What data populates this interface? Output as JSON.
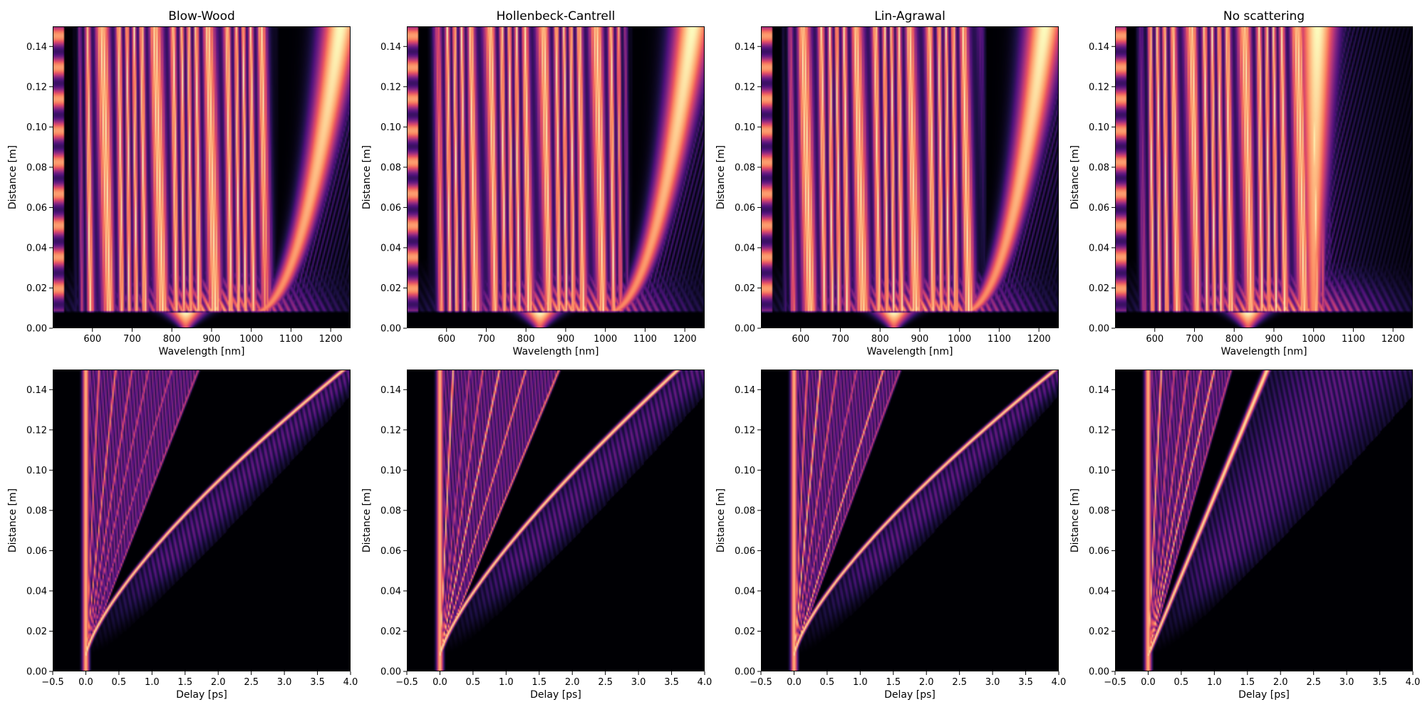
{
  "chart_data": [
    {
      "type": "heatmap",
      "title": "Blow-Wood",
      "xlabel": "Wavelength [nm]",
      "ylabel": "Distance [m]",
      "xlim": [
        500,
        1250
      ],
      "ylim": [
        0,
        0.15
      ],
      "xticks": [
        "600",
        "700",
        "800",
        "900",
        "1000",
        "1100",
        "1200"
      ],
      "yticks": [
        "0.00",
        "0.02",
        "0.04",
        "0.06",
        "0.08",
        "0.10",
        "0.12",
        "0.14"
      ],
      "colormap": "magma",
      "features": {
        "pump_nm": 835,
        "soliton_end_nm": 1225,
        "soliton_curve": 2.2,
        "bands_lo": 590,
        "bands_hi": 1030
      }
    },
    {
      "type": "heatmap",
      "title": "Hollenbeck-Cantrell",
      "xlabel": "Wavelength [nm]",
      "ylabel": "Distance [m]",
      "xlim": [
        500,
        1250
      ],
      "ylim": [
        0,
        0.15
      ],
      "xticks": [
        "600",
        "700",
        "800",
        "900",
        "1000",
        "1100",
        "1200"
      ],
      "yticks": [
        "0.00",
        "0.02",
        "0.04",
        "0.06",
        "0.08",
        "0.10",
        "0.12",
        "0.14"
      ],
      "colormap": "magma",
      "features": {
        "pump_nm": 835,
        "soliton_end_nm": 1220,
        "soliton_curve": 2.2,
        "bands_lo": 590,
        "bands_hi": 1030
      }
    },
    {
      "type": "heatmap",
      "title": "Lin-Agrawal",
      "xlabel": "Wavelength [nm]",
      "ylabel": "Distance [m]",
      "xlim": [
        500,
        1250
      ],
      "ylim": [
        0,
        0.15
      ],
      "xticks": [
        "600",
        "700",
        "800",
        "900",
        "1000",
        "1100",
        "1200"
      ],
      "yticks": [
        "0.00",
        "0.02",
        "0.04",
        "0.06",
        "0.08",
        "0.10",
        "0.12",
        "0.14"
      ],
      "colormap": "magma",
      "features": {
        "pump_nm": 835,
        "soliton_end_nm": 1215,
        "soliton_curve": 2.3,
        "bands_lo": 590,
        "bands_hi": 1030
      }
    },
    {
      "type": "heatmap",
      "title": "No scattering",
      "xlabel": "Wavelength [nm]",
      "ylabel": "Distance [m]",
      "xlim": [
        500,
        1250
      ],
      "ylim": [
        0,
        0.15
      ],
      "xticks": [
        "600",
        "700",
        "800",
        "900",
        "1000",
        "1100",
        "1200"
      ],
      "yticks": [
        "0.00",
        "0.02",
        "0.04",
        "0.06",
        "0.08",
        "0.10",
        "0.12",
        "0.14"
      ],
      "colormap": "magma",
      "features": {
        "pump_nm": 835,
        "soliton_end_nm": 1010,
        "soliton_curve": 0.6,
        "bands_lo": 590,
        "bands_hi": 1010
      }
    },
    {
      "type": "heatmap",
      "title": "",
      "xlabel": "Delay [ps]",
      "ylabel": "Distance [m]",
      "xlim": [
        -0.5,
        4.0
      ],
      "ylim": [
        0,
        0.15
      ],
      "xticks": [
        "−0.5",
        "0.0",
        "0.5",
        "1.0",
        "1.5",
        "2.0",
        "2.5",
        "3.0",
        "3.5",
        "4.0"
      ],
      "yticks": [
        "0.00",
        "0.02",
        "0.04",
        "0.06",
        "0.08",
        "0.10",
        "0.12",
        "0.14"
      ],
      "colormap": "magma",
      "features": {
        "onset_m": 0.008,
        "soliton_end_ps": 3.9,
        "soliton_curve": 1.35,
        "dispersive_end_ps": 4.0,
        "fan_end_ps": [
          0.2,
          0.45,
          0.7,
          0.95,
          1.3,
          1.7
        ]
      }
    },
    {
      "type": "heatmap",
      "title": "",
      "xlabel": "Delay [ps]",
      "ylabel": "Distance [m]",
      "xlim": [
        -0.5,
        4.0
      ],
      "ylim": [
        0,
        0.15
      ],
      "xticks": [
        "−0.5",
        "0.0",
        "0.5",
        "1.0",
        "1.5",
        "2.0",
        "2.5",
        "3.0",
        "3.5",
        "4.0"
      ],
      "yticks": [
        "0.00",
        "0.02",
        "0.04",
        "0.06",
        "0.08",
        "0.10",
        "0.12",
        "0.14"
      ],
      "colormap": "magma",
      "features": {
        "onset_m": 0.008,
        "soliton_end_ps": 3.6,
        "soliton_curve": 1.3,
        "dispersive_end_ps": 4.0,
        "fan_end_ps": [
          0.2,
          0.45,
          0.65,
          0.9,
          1.3,
          1.8
        ]
      }
    },
    {
      "type": "heatmap",
      "title": "",
      "xlabel": "Delay [ps]",
      "ylabel": "Distance [m]",
      "xlim": [
        -0.5,
        4.0
      ],
      "ylim": [
        0,
        0.15
      ],
      "xticks": [
        "−0.5",
        "0.0",
        "0.5",
        "1.0",
        "1.5",
        "2.0",
        "2.5",
        "3.0",
        "3.5",
        "4.0"
      ],
      "yticks": [
        "0.00",
        "0.02",
        "0.04",
        "0.06",
        "0.08",
        "0.10",
        "0.12",
        "0.14"
      ],
      "colormap": "magma",
      "features": {
        "onset_m": 0.008,
        "soliton_end_ps": 3.95,
        "soliton_curve": 1.35,
        "dispersive_end_ps": 4.0,
        "fan_end_ps": [
          0.2,
          0.4,
          0.65,
          0.95,
          1.35,
          1.6
        ]
      }
    },
    {
      "type": "heatmap",
      "title": "",
      "xlabel": "Delay [ps]",
      "ylabel": "Distance [m]",
      "xlim": [
        -0.5,
        4.0
      ],
      "ylim": [
        0,
        0.15
      ],
      "xticks": [
        "−0.5",
        "0.0",
        "0.5",
        "1.0",
        "1.5",
        "2.0",
        "2.5",
        "3.0",
        "3.5",
        "4.0"
      ],
      "yticks": [
        "0.00",
        "0.02",
        "0.04",
        "0.06",
        "0.08",
        "0.10",
        "0.12",
        "0.14"
      ],
      "colormap": "magma",
      "features": {
        "onset_m": 0.008,
        "soliton_end_ps": 1.8,
        "soliton_curve": 1.0,
        "dispersive_end_ps": 4.0,
        "fan_end_ps": [
          0.2,
          0.4,
          0.6,
          0.8,
          1.0,
          1.25
        ]
      }
    }
  ]
}
